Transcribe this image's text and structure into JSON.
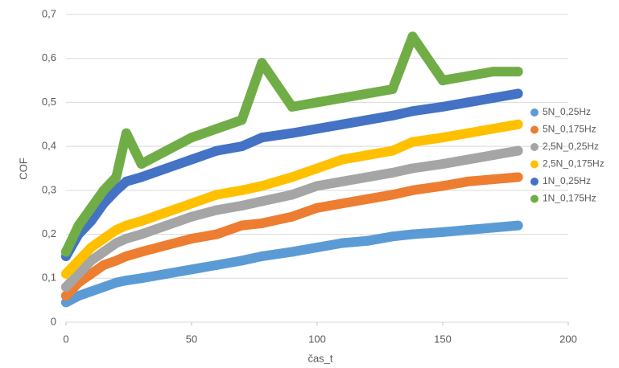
{
  "chart_data": {
    "type": "scatter",
    "xlabel": "čas_t",
    "ylabel": "COF",
    "x": [
      0,
      5,
      10,
      15,
      20,
      24,
      30,
      40,
      50,
      60,
      70,
      78,
      90,
      100,
      110,
      120,
      130,
      138,
      150,
      160,
      170,
      180
    ],
    "series": [
      {
        "name": "5N_0,25Hz",
        "color": "#5b9bd5",
        "values": [
          0.045,
          0.06,
          0.07,
          0.08,
          0.09,
          0.095,
          0.1,
          0.11,
          0.12,
          0.13,
          0.14,
          0.15,
          0.16,
          0.17,
          0.18,
          0.185,
          0.195,
          0.2,
          0.205,
          0.21,
          0.215,
          0.22
        ]
      },
      {
        "name": "5N_0,175Hz",
        "color": "#ed7d31",
        "values": [
          0.06,
          0.09,
          0.11,
          0.13,
          0.14,
          0.15,
          0.16,
          0.175,
          0.19,
          0.2,
          0.22,
          0.225,
          0.24,
          0.26,
          0.27,
          0.28,
          0.29,
          0.3,
          0.31,
          0.32,
          0.325,
          0.33
        ]
      },
      {
        "name": "2,5N_0,25Hz",
        "color": "#a5a5a5",
        "values": [
          0.08,
          0.11,
          0.14,
          0.16,
          0.18,
          0.19,
          0.2,
          0.22,
          0.24,
          0.255,
          0.265,
          0.275,
          0.29,
          0.31,
          0.32,
          0.33,
          0.34,
          0.35,
          0.36,
          0.37,
          0.38,
          0.39
        ]
      },
      {
        "name": "2,5N_0,175Hz",
        "color": "#ffc000",
        "values": [
          0.11,
          0.14,
          0.17,
          0.19,
          0.21,
          0.22,
          0.23,
          0.25,
          0.27,
          0.29,
          0.3,
          0.31,
          0.33,
          0.35,
          0.37,
          0.38,
          0.39,
          0.41,
          0.42,
          0.43,
          0.44,
          0.45
        ]
      },
      {
        "name": "1N_0,25Hz",
        "color": "#4472c4",
        "values": [
          0.15,
          0.2,
          0.23,
          0.27,
          0.3,
          0.32,
          0.33,
          0.35,
          0.37,
          0.39,
          0.4,
          0.42,
          0.43,
          0.44,
          0.45,
          0.46,
          0.47,
          0.48,
          0.49,
          0.5,
          0.51,
          0.52
        ]
      },
      {
        "name": "1N_0,175Hz",
        "color": "#70ad47",
        "values": [
          0.16,
          0.22,
          0.26,
          0.3,
          0.33,
          0.43,
          0.36,
          0.39,
          0.42,
          0.44,
          0.46,
          0.59,
          0.49,
          0.5,
          0.51,
          0.52,
          0.53,
          0.65,
          0.55,
          0.56,
          0.57,
          0.57
        ]
      }
    ],
    "xlim": [
      0,
      200
    ],
    "xticks": [
      0,
      50,
      100,
      150,
      200
    ],
    "ylim": [
      0,
      0.7
    ],
    "yticks": [
      0,
      {
        "value": 0.1,
        "label": "0,1"
      },
      {
        "value": 0.2,
        "label": "0,2"
      },
      {
        "value": 0.3,
        "label": "0,3"
      },
      {
        "value": 0.4,
        "label": "0,4"
      },
      {
        "value": 0.5,
        "label": "0,5"
      },
      {
        "value": 0.6,
        "label": "0,6"
      },
      {
        "value": 0.7,
        "label": "0,7"
      }
    ],
    "grid": true,
    "legend": "right"
  }
}
